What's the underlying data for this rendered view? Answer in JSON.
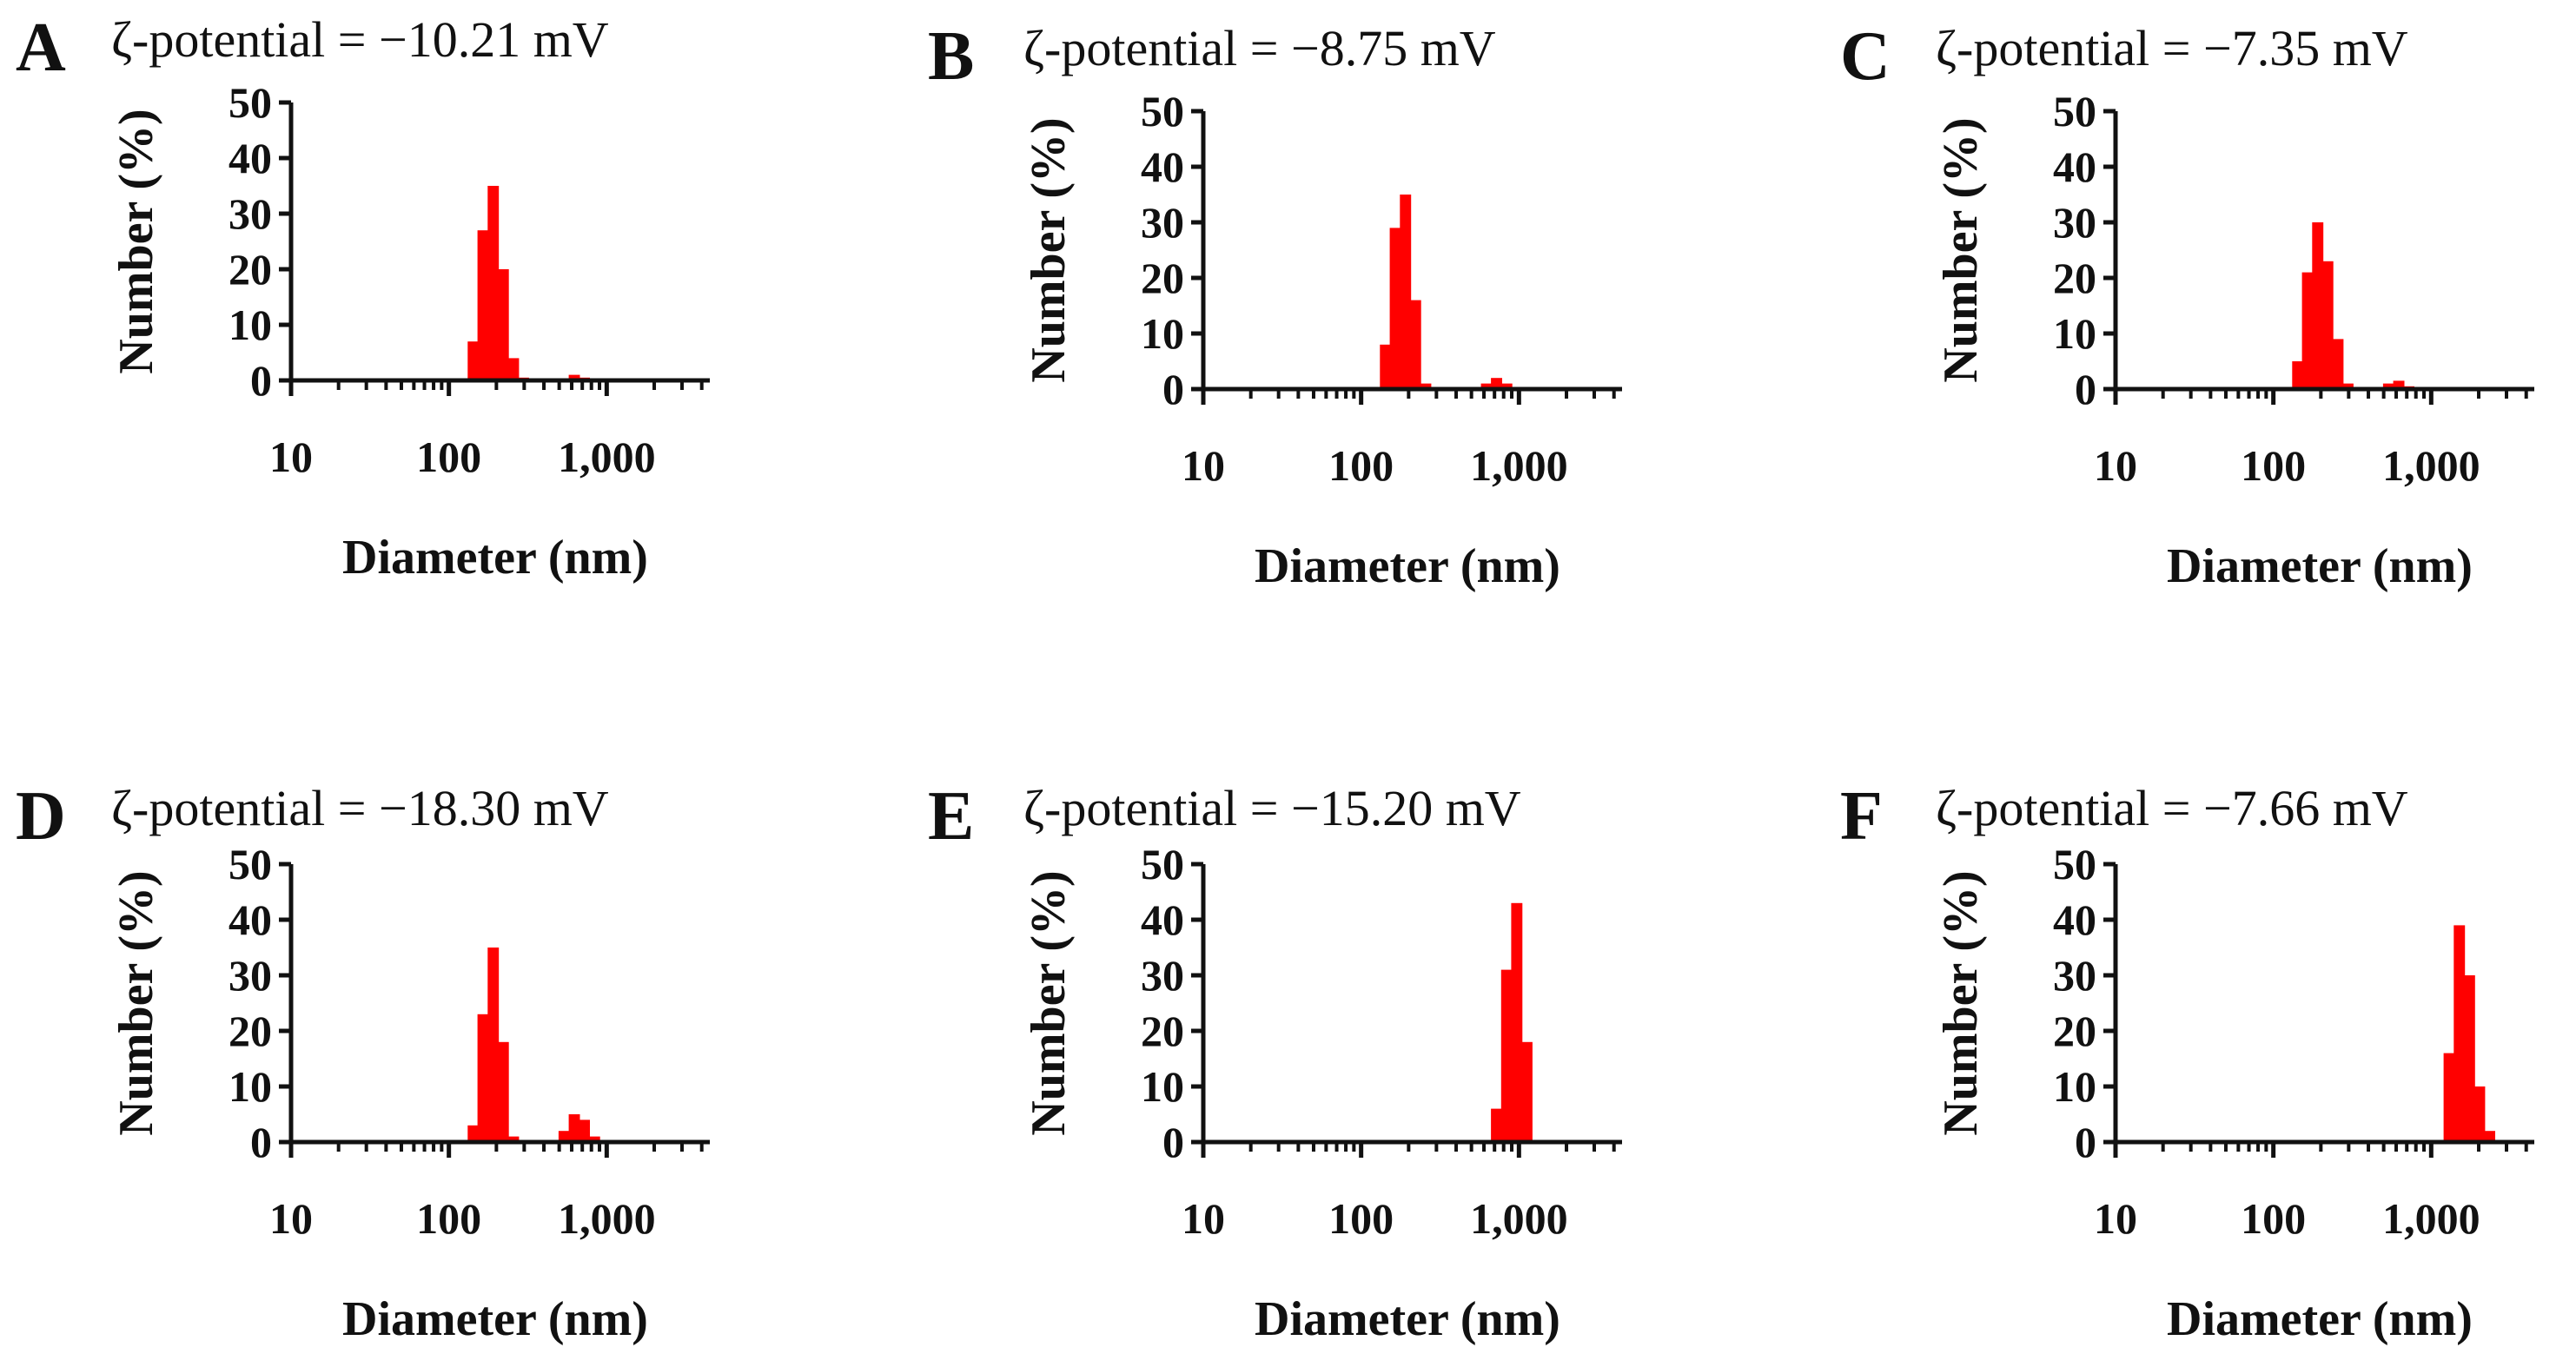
{
  "figure": {
    "bar_color": "#ff0000",
    "axis_color": "#111111"
  },
  "chart_data": [
    {
      "panel": "A",
      "type": "bar",
      "title": "ζ-potential = −10.21 mV",
      "xlabel": "Diameter (nm)",
      "ylabel": "Number (%)",
      "xscale": "log",
      "xlim": [
        10,
        4500
      ],
      "ylim": [
        0,
        50
      ],
      "yticks": [
        "0",
        "10",
        "20",
        "30",
        "40",
        "50"
      ],
      "xticks": [
        "10",
        "100",
        "1,000"
      ],
      "x": [
        142,
        164,
        190,
        220,
        255,
        295,
        620,
        718
      ],
      "values": [
        7,
        27,
        35,
        20,
        4,
        0.5,
        1,
        0.5
      ]
    },
    {
      "panel": "B",
      "type": "bar",
      "title": "ζ-potential = −8.75 mV",
      "xlabel": "Diameter (nm)",
      "ylabel": "Number (%)",
      "xscale": "log",
      "xlim": [
        10,
        4500
      ],
      "ylim": [
        0,
        50
      ],
      "yticks": [
        "0",
        "10",
        "20",
        "30",
        "40",
        "50"
      ],
      "xticks": [
        "10",
        "100",
        "1,000"
      ],
      "x": [
        142,
        164,
        190,
        220,
        255,
        295,
        620,
        718,
        832
      ],
      "values": [
        8,
        29,
        35,
        16,
        1,
        0.3,
        1,
        2,
        1
      ]
    },
    {
      "panel": "C",
      "type": "bar",
      "title": "ζ-potential = −7.35 mV",
      "xlabel": "Diameter (nm)",
      "ylabel": "Number (%)",
      "xscale": "log",
      "xlim": [
        10,
        4500
      ],
      "ylim": [
        0,
        50
      ],
      "yticks": [
        "0",
        "10",
        "20",
        "30",
        "40",
        "50"
      ],
      "xticks": [
        "10",
        "100",
        "1,000"
      ],
      "x": [
        142,
        164,
        190,
        220,
        255,
        295,
        535,
        620,
        718
      ],
      "values": [
        5,
        21,
        30,
        23,
        9,
        1,
        1,
        1.5,
        0.5
      ]
    },
    {
      "panel": "D",
      "type": "bar",
      "title": "ζ-potential = −18.30 mV",
      "xlabel": "Diameter (nm)",
      "ylabel": "Number (%)",
      "xscale": "log",
      "xlim": [
        10,
        4500
      ],
      "ylim": [
        0,
        50
      ],
      "yticks": [
        "0",
        "10",
        "20",
        "30",
        "40",
        "50"
      ],
      "xticks": [
        "10",
        "100",
        "1,000"
      ],
      "x": [
        142,
        164,
        190,
        220,
        255,
        535,
        620,
        718,
        832
      ],
      "values": [
        3,
        23,
        35,
        18,
        1,
        2,
        5,
        4,
        1
      ]
    },
    {
      "panel": "E",
      "type": "bar",
      "title": "ζ-potential = −15.20 mV",
      "xlabel": "Diameter (nm)",
      "ylabel": "Number (%)",
      "xscale": "log",
      "xlim": [
        10,
        4500
      ],
      "ylim": [
        0,
        50
      ],
      "yticks": [
        "0",
        "10",
        "20",
        "30",
        "40",
        "50"
      ],
      "xticks": [
        "10",
        "100",
        "1,000"
      ],
      "x": [
        718,
        832,
        964,
        1117
      ],
      "values": [
        6,
        31,
        43,
        18
      ]
    },
    {
      "panel": "F",
      "type": "bar",
      "title": "ζ-potential = −7.66 mV",
      "xlabel": "Diameter (nm)",
      "ylabel": "Number (%)",
      "xscale": "log",
      "xlim": [
        10,
        4500
      ],
      "ylim": [
        0,
        50
      ],
      "yticks": [
        "0",
        "10",
        "20",
        "30",
        "40",
        "50"
      ],
      "xticks": [
        "10",
        "100",
        "1,000"
      ],
      "x": [
        1294,
        1500,
        1738,
        2014,
        2334
      ],
      "values": [
        16,
        39,
        30,
        10,
        2
      ]
    }
  ]
}
